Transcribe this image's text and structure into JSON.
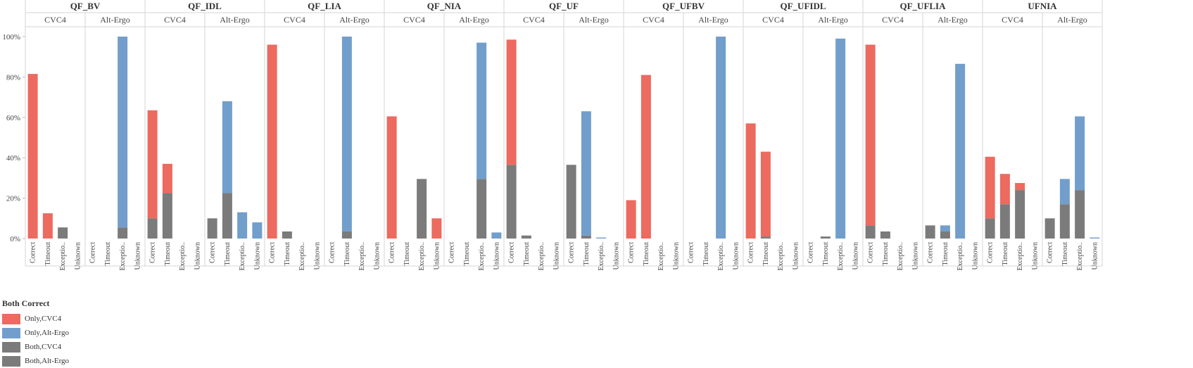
{
  "chart_data": {
    "type": "bar",
    "stacked": true,
    "title": "",
    "xlabel": "",
    "ylabel": "",
    "ylim": [
      0,
      100
    ],
    "yticks": [
      "0%",
      "20%",
      "40%",
      "60%",
      "80%",
      "100%"
    ],
    "categories": [
      "Correct",
      "Timeout",
      "Exceptio..",
      "Unknown"
    ],
    "solvers": [
      "CVC4",
      "Alt-Ergo"
    ],
    "legend": {
      "title": "Both Correct",
      "placement": "bottom-left",
      "entries": [
        {
          "label": "Only,CVC4",
          "color": "#ec6a5f"
        },
        {
          "label": "Only,Alt-Ergo",
          "color": "#729ecb"
        },
        {
          "label": "Both,CVC4",
          "color": "#7b7b7b"
        },
        {
          "label": "Both,Alt-Ergo",
          "color": "#7b7b7b"
        }
      ]
    },
    "grid": false,
    "logics": [
      {
        "name": "QF_BV",
        "groups": [
          {
            "solver": "CVC4",
            "bars": [
              {
                "gray": 0,
                "color": 81.5
              },
              {
                "gray": 0,
                "color": 12.5
              },
              {
                "gray": 5.5,
                "color": 0
              },
              {
                "gray": 0,
                "color": 0
              }
            ]
          },
          {
            "solver": "Alt-Ergo",
            "bars": [
              {
                "gray": 0,
                "color": 0
              },
              {
                "gray": 0,
                "color": 0
              },
              {
                "gray": 5.5,
                "color": 94.5
              },
              {
                "gray": 0,
                "color": 0
              }
            ]
          }
        ]
      },
      {
        "name": "QF_IDL",
        "groups": [
          {
            "solver": "CVC4",
            "bars": [
              {
                "gray": 10,
                "color": 53.5
              },
              {
                "gray": 22.5,
                "color": 14.5
              },
              {
                "gray": 0,
                "color": 0
              },
              {
                "gray": 0,
                "color": 0
              }
            ]
          },
          {
            "solver": "Alt-Ergo",
            "bars": [
              {
                "gray": 10,
                "color": 0
              },
              {
                "gray": 22.5,
                "color": 45.5
              },
              {
                "gray": 0,
                "color": 13
              },
              {
                "gray": 0,
                "color": 8
              }
            ]
          }
        ]
      },
      {
        "name": "QF_LIA",
        "groups": [
          {
            "solver": "CVC4",
            "bars": [
              {
                "gray": 0,
                "color": 96
              },
              {
                "gray": 3.5,
                "color": 0
              },
              {
                "gray": 0,
                "color": 0
              },
              {
                "gray": 0,
                "color": 0
              }
            ]
          },
          {
            "solver": "Alt-Ergo",
            "bars": [
              {
                "gray": 0,
                "color": 0
              },
              {
                "gray": 3.5,
                "color": 96.5
              },
              {
                "gray": 0,
                "color": 0
              },
              {
                "gray": 0,
                "color": 0
              }
            ]
          }
        ]
      },
      {
        "name": "QF_NIA",
        "groups": [
          {
            "solver": "CVC4",
            "bars": [
              {
                "gray": 0,
                "color": 60.5
              },
              {
                "gray": 0,
                "color": 0
              },
              {
                "gray": 29.5,
                "color": 0
              },
              {
                "gray": 0,
                "color": 10
              }
            ]
          },
          {
            "solver": "Alt-Ergo",
            "bars": [
              {
                "gray": 0,
                "color": 0
              },
              {
                "gray": 0,
                "color": 0
              },
              {
                "gray": 29.5,
                "color": 67.5
              },
              {
                "gray": 0,
                "color": 3
              }
            ]
          }
        ]
      },
      {
        "name": "QF_UF",
        "groups": [
          {
            "solver": "CVC4",
            "bars": [
              {
                "gray": 36.5,
                "color": 62
              },
              {
                "gray": 1.5,
                "color": 0
              },
              {
                "gray": 0,
                "color": 0
              },
              {
                "gray": 0,
                "color": 0
              }
            ]
          },
          {
            "solver": "Alt-Ergo",
            "bars": [
              {
                "gray": 36.5,
                "color": 0
              },
              {
                "gray": 1.5,
                "color": 61.5
              },
              {
                "gray": 0,
                "color": 0.5
              },
              {
                "gray": 0,
                "color": 0
              }
            ]
          }
        ]
      },
      {
        "name": "QF_UFBV",
        "groups": [
          {
            "solver": "CVC4",
            "bars": [
              {
                "gray": 0,
                "color": 19
              },
              {
                "gray": 0,
                "color": 81
              },
              {
                "gray": 0,
                "color": 0
              },
              {
                "gray": 0,
                "color": 0
              }
            ]
          },
          {
            "solver": "Alt-Ergo",
            "bars": [
              {
                "gray": 0,
                "color": 0
              },
              {
                "gray": 0,
                "color": 0
              },
              {
                "gray": 0,
                "color": 100
              },
              {
                "gray": 0,
                "color": 0
              }
            ]
          }
        ]
      },
      {
        "name": "QF_UFIDL",
        "groups": [
          {
            "solver": "CVC4",
            "bars": [
              {
                "gray": 0,
                "color": 57
              },
              {
                "gray": 1,
                "color": 42
              },
              {
                "gray": 0,
                "color": 0
              },
              {
                "gray": 0,
                "color": 0
              }
            ]
          },
          {
            "solver": "Alt-Ergo",
            "bars": [
              {
                "gray": 0,
                "color": 0
              },
              {
                "gray": 1,
                "color": 0
              },
              {
                "gray": 0,
                "color": 99
              },
              {
                "gray": 0,
                "color": 0
              }
            ]
          }
        ]
      },
      {
        "name": "QF_UFLIA",
        "groups": [
          {
            "solver": "CVC4",
            "bars": [
              {
                "gray": 6.5,
                "color": 89.5
              },
              {
                "gray": 3.5,
                "color": 0
              },
              {
                "gray": 0,
                "color": 0
              },
              {
                "gray": 0,
                "color": 0
              }
            ]
          },
          {
            "solver": "Alt-Ergo",
            "bars": [
              {
                "gray": 6.5,
                "color": 0
              },
              {
                "gray": 3.5,
                "color": 3
              },
              {
                "gray": 0,
                "color": 86.5
              },
              {
                "gray": 0,
                "color": 0
              }
            ]
          }
        ]
      },
      {
        "name": "UFNIA",
        "groups": [
          {
            "solver": "CVC4",
            "bars": [
              {
                "gray": 10,
                "color": 30.5
              },
              {
                "gray": 17,
                "color": 15
              },
              {
                "gray": 24,
                "color": 3.5
              },
              {
                "gray": 0,
                "color": 0
              }
            ]
          },
          {
            "solver": "Alt-Ergo",
            "bars": [
              {
                "gray": 10,
                "color": 0
              },
              {
                "gray": 17,
                "color": 12.5
              },
              {
                "gray": 24,
                "color": 36.5
              },
              {
                "gray": 0,
                "color": 0.5
              }
            ]
          }
        ]
      }
    ]
  }
}
